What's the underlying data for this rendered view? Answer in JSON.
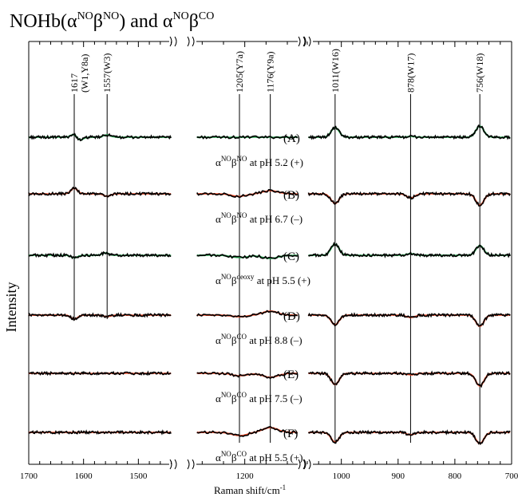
{
  "chart_data": {
    "type": "line",
    "title": {
      "prefix": "NOHb(α",
      "sup1": "NO",
      "mid1": "β",
      "sup2": "NO",
      "mid2": ") and α",
      "sup3": "NO",
      "mid3": "β",
      "sup4": "CO"
    },
    "xlabel": {
      "text": "Raman shift/cm",
      "sup": "-1"
    },
    "ylabel": "Intensity",
    "x_axis_segments": [
      {
        "xlim": [
          1700,
          1435
        ],
        "ticks": [
          1700,
          1600,
          1500
        ]
      },
      {
        "xlim": [
          1250,
          1145
        ],
        "ticks": [
          1200
        ]
      },
      {
        "xlim": [
          1060,
          700
        ],
        "ticks": [
          1000,
          900,
          800,
          700
        ]
      }
    ],
    "tick_labels": [
      "1700",
      "1600",
      "1500",
      "1200",
      "1000",
      "900",
      "800",
      "700"
    ],
    "peak_markers": [
      {
        "label": "1617",
        "label2": "(W1,Y8a)",
        "x": 1617
      },
      {
        "label": "1557(W3)",
        "x": 1557
      },
      {
        "label": "1205(Y7a)",
        "x": 1205
      },
      {
        "label": "1176(Y9a)",
        "x": 1176
      },
      {
        "label": "1011(W16)",
        "x": 1011
      },
      {
        "label": "878(W17)",
        "x": 878
      },
      {
        "label": "756(W18)",
        "x": 756
      }
    ],
    "traces": [
      {
        "letter": "(A)",
        "pre": "α",
        "s1": "NO",
        "m": "β",
        "s2": "NO",
        "post": " at pH 5.2 (+)",
        "overlay_color": "#1fa14a",
        "peaks": [
          [
            1617,
            4
          ],
          [
            1607,
            -4
          ],
          [
            1557,
            3
          ],
          [
            1011,
            12
          ],
          [
            878,
            1
          ],
          [
            756,
            14
          ]
        ]
      },
      {
        "letter": "(B)",
        "pre": "α",
        "s1": "NO",
        "m": "β",
        "s2": "NO",
        "post": " at pH 6.7 (–)",
        "overlay_color": "#e8431f",
        "peaks": [
          [
            1617,
            7
          ],
          [
            1557,
            -3
          ],
          [
            1205,
            -3
          ],
          [
            1176,
            4
          ],
          [
            1011,
            -12
          ],
          [
            878,
            -5
          ],
          [
            756,
            -14
          ]
        ]
      },
      {
        "letter": "(C)",
        "pre": "α",
        "s1": "NO",
        "m": "β",
        "s2": "deoxy",
        "post": " at pH 5.5 (+)",
        "overlay_color": "#1fa14a",
        "peaks": [
          [
            1617,
            -3
          ],
          [
            1560,
            3
          ],
          [
            1205,
            -3
          ],
          [
            1176,
            -4
          ],
          [
            1011,
            14
          ],
          [
            878,
            2
          ],
          [
            756,
            12
          ]
        ]
      },
      {
        "letter": "(D)",
        "pre": "α",
        "s1": "NO",
        "m": "β",
        "s2": "CO",
        "post": " at pH 8.8 (–)",
        "overlay_color": "#e8431f",
        "peaks": [
          [
            1617,
            -5
          ],
          [
            1557,
            -2
          ],
          [
            1205,
            -2
          ],
          [
            1176,
            5
          ],
          [
            1011,
            -12
          ],
          [
            878,
            -3
          ],
          [
            756,
            -14
          ]
        ]
      },
      {
        "letter": "(E)",
        "pre": "α",
        "s1": "NO",
        "m": "β",
        "s2": "CO",
        "post": " at pH 7.5 (–)",
        "overlay_color": "#e8431f",
        "peaks": [
          [
            1205,
            -3
          ],
          [
            1176,
            -5
          ],
          [
            1011,
            -14
          ],
          [
            878,
            -2
          ],
          [
            756,
            -16
          ]
        ]
      },
      {
        "letter": "(F)",
        "pre": "α",
        "s1": "NO",
        "m": "β",
        "s2": "CO",
        "post": " at pH 5.5 (+)",
        "overlay_color": "#e8431f",
        "peaks": [
          [
            1205,
            -4
          ],
          [
            1176,
            6
          ],
          [
            1011,
            -12
          ],
          [
            878,
            -3
          ],
          [
            756,
            -14
          ]
        ]
      }
    ],
    "grid": false,
    "legend": "none"
  }
}
